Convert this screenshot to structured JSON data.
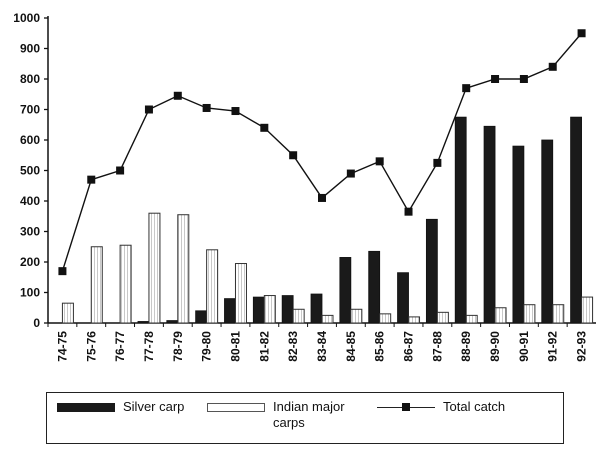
{
  "chart_data": {
    "type": "bar",
    "categories": [
      "74-75",
      "75-76",
      "76-77",
      "77-78",
      "78-79",
      "79-80",
      "80-81",
      "81-82",
      "82-83",
      "83-84",
      "84-85",
      "85-86",
      "86-87",
      "87-88",
      "88-89",
      "89-90",
      "90-91",
      "91-92",
      "92-93"
    ],
    "ylim": [
      0,
      1000
    ],
    "yticks": [
      0,
      100,
      200,
      300,
      400,
      500,
      600,
      700,
      800,
      900,
      1000
    ],
    "series": [
      {
        "name": "Silver carp",
        "kind": "bar",
        "color": "#1a1a1a",
        "values": [
          0,
          0,
          0,
          5,
          8,
          40,
          80,
          85,
          90,
          95,
          215,
          235,
          165,
          340,
          675,
          645,
          580,
          600,
          675
        ]
      },
      {
        "name": "Indian major carps",
        "kind": "bar",
        "color": "#ffffff",
        "values": [
          65,
          250,
          255,
          360,
          355,
          240,
          195,
          90,
          45,
          25,
          45,
          30,
          20,
          35,
          25,
          50,
          60,
          60,
          85
        ]
      },
      {
        "name": "Total catch",
        "kind": "line",
        "color": "#111111",
        "values": [
          170,
          470,
          500,
          700,
          745,
          705,
          695,
          640,
          550,
          410,
          490,
          530,
          365,
          525,
          770,
          800,
          800,
          840,
          950
        ]
      }
    ],
    "legend_position": "bottom",
    "grid": false
  },
  "legend": {
    "silver_label": "Silver carp",
    "indian_label_line1": "Indian major",
    "indian_label_line2": "carps",
    "total_label": "Total catch"
  }
}
